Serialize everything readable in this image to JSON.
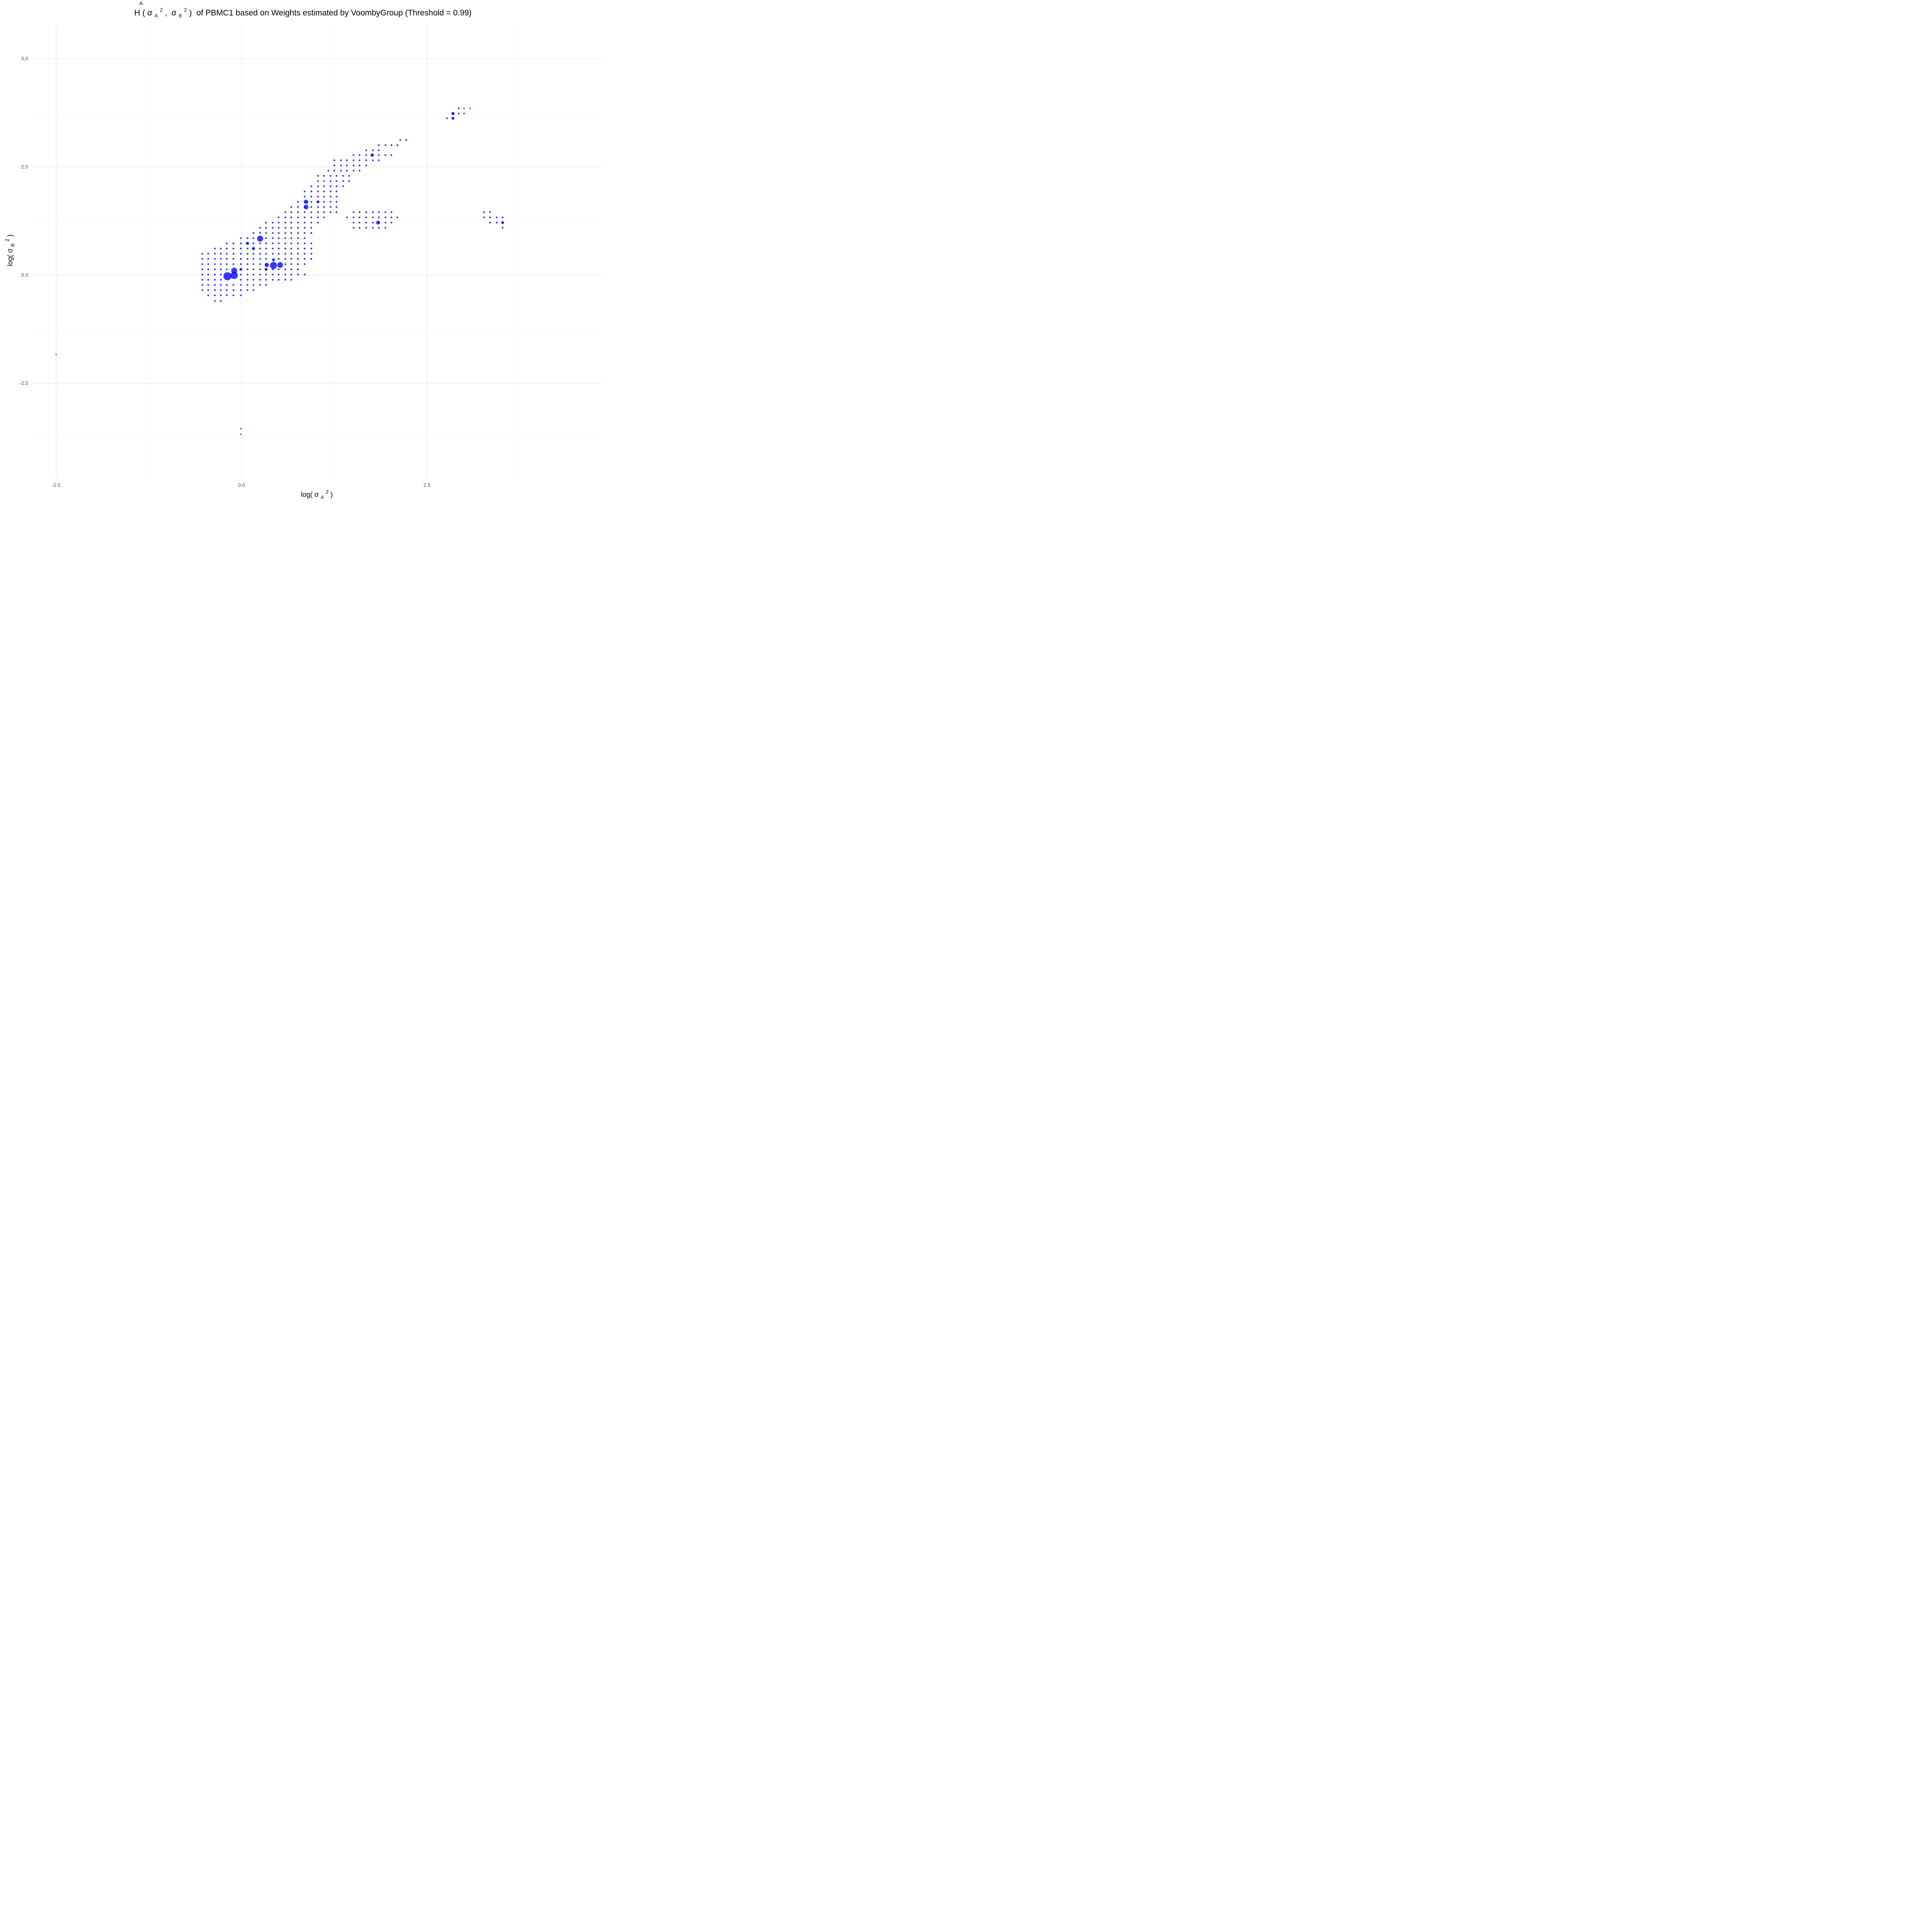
{
  "chart_data": {
    "type": "scatter",
    "title": {
      "hat_letter": "H",
      "hat_mark": "^",
      "lparen": "(",
      "sigma": "σ",
      "sub_a": "A",
      "sub_b": "B",
      "sup": "2",
      "comma": ",",
      "rparen": ")",
      "rest": "of PBMC1 based on Weights estimated by VoombyGroup (Threshold = 0.99)"
    },
    "xlabel": {
      "prefix": "log(",
      "sigma": "σ",
      "sub": "A",
      "sup": "2",
      "suffix": ")"
    },
    "ylabel": {
      "prefix": "log(",
      "sigma": "σ",
      "sub": "B",
      "sup": "2",
      "suffix": ")"
    },
    "x_ticks": [
      {
        "value": -2.5,
        "label": "-2.5"
      },
      {
        "value": 0.0,
        "label": "0.0"
      },
      {
        "value": 2.5,
        "label": "2.5"
      }
    ],
    "y_ticks": [
      {
        "value": -2.5,
        "label": "-2.5"
      },
      {
        "value": 0.0,
        "label": "0.0"
      },
      {
        "value": 2.5,
        "label": "2.5"
      },
      {
        "value": 5.0,
        "label": "5.0"
      }
    ],
    "xlim": [
      -2.83,
      4.86
    ],
    "ylim": [
      -4.7,
      5.8
    ],
    "grid": true,
    "legend": "none",
    "point_color": "#0000ff",
    "size_scale_max": 20,
    "grid_rows": [
      {
        "y": 3.85,
        "x": [
          2.93
        ]
      },
      {
        "y": 3.73,
        "x": [
          2.85,
          2.93
        ]
      },
      {
        "y": 3.62,
        "x": [
          2.77,
          2.85
        ]
      },
      {
        "y": 3.12,
        "x": [
          2.14,
          2.22
        ]
      },
      {
        "y": 3.0,
        "x": [
          1.85,
          1.94,
          2.02,
          2.1
        ]
      },
      {
        "y": 2.88,
        "x": [
          1.68,
          1.77,
          1.85
        ]
      },
      {
        "y": 2.77,
        "x": [
          1.51,
          1.59,
          1.68,
          1.77,
          1.85,
          1.94,
          2.02
        ]
      },
      {
        "y": 2.65,
        "x": [
          1.25,
          1.34,
          1.42,
          1.51,
          1.59,
          1.68,
          1.77,
          1.85
        ]
      },
      {
        "y": 2.53,
        "x": [
          1.25,
          1.34,
          1.42,
          1.51,
          1.59,
          1.68
        ]
      },
      {
        "y": 2.41,
        "x": [
          1.17,
          1.25,
          1.34,
          1.42,
          1.51,
          1.59
        ]
      },
      {
        "y": 2.29,
        "x": [
          1.03,
          1.11,
          1.2,
          1.28,
          1.37,
          1.45
        ]
      },
      {
        "y": 2.17,
        "x": [
          1.03,
          1.11,
          1.2,
          1.28,
          1.37,
          1.45
        ]
      },
      {
        "y": 2.05,
        "x": [
          0.94,
          1.03,
          1.11,
          1.2,
          1.28,
          1.37
        ]
      },
      {
        "y": 1.93,
        "x": [
          0.85,
          0.94,
          1.03,
          1.11,
          1.2,
          1.28
        ]
      },
      {
        "y": 1.81,
        "x": [
          0.85,
          0.94,
          1.03,
          1.11,
          1.2,
          1.28
        ]
      },
      {
        "y": 1.69,
        "x": [
          0.76,
          0.85,
          0.94,
          1.03,
          1.11,
          1.2,
          1.28
        ]
      },
      {
        "y": 1.57,
        "x": [
          0.67,
          0.76,
          0.85,
          0.94,
          1.03,
          1.11,
          1.2,
          1.28
        ]
      },
      {
        "y": 1.45,
        "x": [
          0.59,
          0.67,
          0.76,
          0.85,
          0.94,
          1.03,
          1.11,
          1.2,
          1.28,
          1.51,
          1.59,
          1.68,
          1.77,
          1.85,
          1.94,
          2.02,
          3.27,
          3.35
        ]
      },
      {
        "y": 1.33,
        "x": [
          0.5,
          0.59,
          0.67,
          0.76,
          0.85,
          0.94,
          1.03,
          1.11,
          1.42,
          1.51,
          1.59,
          1.68,
          1.77,
          1.85,
          1.94,
          2.02,
          2.1,
          3.27,
          3.35,
          3.44,
          3.52
        ]
      },
      {
        "y": 1.21,
        "x": [
          0.33,
          0.42,
          0.5,
          0.59,
          0.67,
          0.76,
          0.85,
          0.94,
          1.03,
          1.51,
          1.59,
          1.68,
          1.77,
          1.85,
          1.94,
          2.02,
          3.35,
          3.44,
          3.52
        ]
      },
      {
        "y": 1.09,
        "x": [
          0.25,
          0.33,
          0.42,
          0.5,
          0.59,
          0.67,
          0.76,
          0.85,
          0.94,
          1.51,
          1.59,
          1.68,
          1.77,
          1.85,
          1.94,
          3.52
        ]
      },
      {
        "y": 0.97,
        "x": [
          0.16,
          0.25,
          0.33,
          0.42,
          0.5,
          0.59,
          0.67,
          0.76,
          0.85,
          0.94
        ]
      },
      {
        "y": 0.85,
        "x": [
          -0.01,
          0.08,
          0.16,
          0.33,
          0.42,
          0.5,
          0.59,
          0.67,
          0.76,
          0.85
        ]
      },
      {
        "y": 0.73,
        "x": [
          -0.2,
          -0.11,
          -0.01,
          0.08,
          0.16,
          0.25,
          0.33,
          0.42,
          0.5,
          0.59,
          0.67,
          0.76,
          0.85,
          0.94
        ]
      },
      {
        "y": 0.61,
        "x": [
          -0.36,
          -0.28,
          -0.2,
          -0.11,
          -0.01,
          0.08,
          0.16,
          0.25,
          0.33,
          0.42,
          0.5,
          0.59,
          0.67,
          0.76,
          0.85,
          0.94
        ]
      },
      {
        "y": 0.49,
        "x": [
          -0.53,
          -0.45,
          -0.36,
          -0.28,
          -0.2,
          -0.11,
          -0.01,
          0.08,
          0.16,
          0.25,
          0.33,
          0.42,
          0.5,
          0.59,
          0.67,
          0.76,
          0.85,
          0.94
        ]
      },
      {
        "y": 0.37,
        "x": [
          -0.53,
          -0.45,
          -0.36,
          -0.28,
          -0.2,
          -0.11,
          -0.01,
          0.08,
          0.16,
          0.25,
          0.33,
          0.5,
          0.59,
          0.67,
          0.76,
          0.85,
          0.94
        ]
      },
      {
        "y": 0.25,
        "x": [
          -0.53,
          -0.45,
          -0.36,
          -0.28,
          -0.2,
          -0.11,
          -0.01,
          0.08,
          0.16,
          0.25,
          0.33,
          0.59,
          0.67,
          0.76,
          0.85
        ]
      },
      {
        "y": 0.13,
        "x": [
          -0.53,
          -0.45,
          -0.36,
          -0.28,
          -0.2,
          -0.01,
          0.08,
          0.16,
          0.25,
          0.33,
          0.42,
          0.5,
          0.59,
          0.67,
          0.76
        ]
      },
      {
        "y": 0.01,
        "x": [
          -0.53,
          -0.45,
          -0.36,
          -0.28,
          -0.01,
          0.08,
          0.16,
          0.25,
          0.33,
          0.42,
          0.5,
          0.59,
          0.67,
          0.76,
          0.85
        ]
      },
      {
        "y": -0.11,
        "x": [
          -0.53,
          -0.45,
          -0.36,
          -0.28,
          -0.01,
          0.08,
          0.16,
          0.25,
          0.33,
          0.42,
          0.5,
          0.59,
          0.67
        ]
      },
      {
        "y": -0.23,
        "x": [
          -0.53,
          -0.45,
          -0.36,
          -0.28,
          -0.2,
          -0.11,
          -0.01,
          0.08,
          0.16,
          0.25,
          0.33
        ]
      },
      {
        "y": -0.35,
        "x": [
          -0.53,
          -0.45,
          -0.36,
          -0.28,
          -0.2,
          -0.11,
          -0.01,
          0.08,
          0.16
        ]
      },
      {
        "y": -0.47,
        "x": [
          -0.45,
          -0.36,
          -0.28,
          -0.2,
          -0.11,
          -0.01
        ]
      },
      {
        "y": -0.6,
        "x": [
          -0.36,
          -0.28
        ]
      }
    ],
    "extra_points": [
      {
        "x": -2.5,
        "y": -1.84,
        "w": 0.5
      },
      {
        "x": -0.01,
        "y": -3.55,
        "w": 0.6
      },
      {
        "x": -0.01,
        "y": -3.68,
        "w": 0.6
      },
      {
        "x": 3.0,
        "y": 3.85,
        "w": 0.6
      },
      {
        "x": 3.08,
        "y": 3.85,
        "w": 0.6
      },
      {
        "x": 3.0,
        "y": 3.73,
        "w": 0.8
      }
    ],
    "weighted_points": [
      {
        "x": -0.19,
        "y": -0.03,
        "w": 20
      },
      {
        "x": -0.1,
        "y": -0.01,
        "w": 16.5
      },
      {
        "x": -0.1,
        "y": 0.1,
        "w": 11
      },
      {
        "x": 0.43,
        "y": 0.22,
        "w": 15
      },
      {
        "x": 0.52,
        "y": 0.23,
        "w": 10
      },
      {
        "x": 0.25,
        "y": 0.84,
        "w": 11
      },
      {
        "x": 0.34,
        "y": 0.23,
        "w": 5.5
      },
      {
        "x": 0.87,
        "y": 1.57,
        "w": 6.5
      },
      {
        "x": 0.87,
        "y": 1.69,
        "w": 5.5
      },
      {
        "x": 1.84,
        "y": 1.21,
        "w": 4.5
      },
      {
        "x": 1.76,
        "y": 2.77,
        "w": 3.5
      },
      {
        "x": 2.85,
        "y": 3.73,
        "w": 3
      },
      {
        "x": 2.85,
        "y": 3.62,
        "w": 2.5
      },
      {
        "x": 0.43,
        "y": 0.35,
        "w": 3
      },
      {
        "x": 0.16,
        "y": 0.61,
        "w": 3
      },
      {
        "x": 0.08,
        "y": 0.73,
        "w": 3
      },
      {
        "x": 0.33,
        "y": 0.13,
        "w": 2.5
      },
      {
        "x": -0.01,
        "y": 0.13,
        "w": 2.5
      },
      {
        "x": 3.52,
        "y": 1.21,
        "w": 2.5
      },
      {
        "x": 1.03,
        "y": 1.69,
        "w": 2.5
      }
    ]
  }
}
